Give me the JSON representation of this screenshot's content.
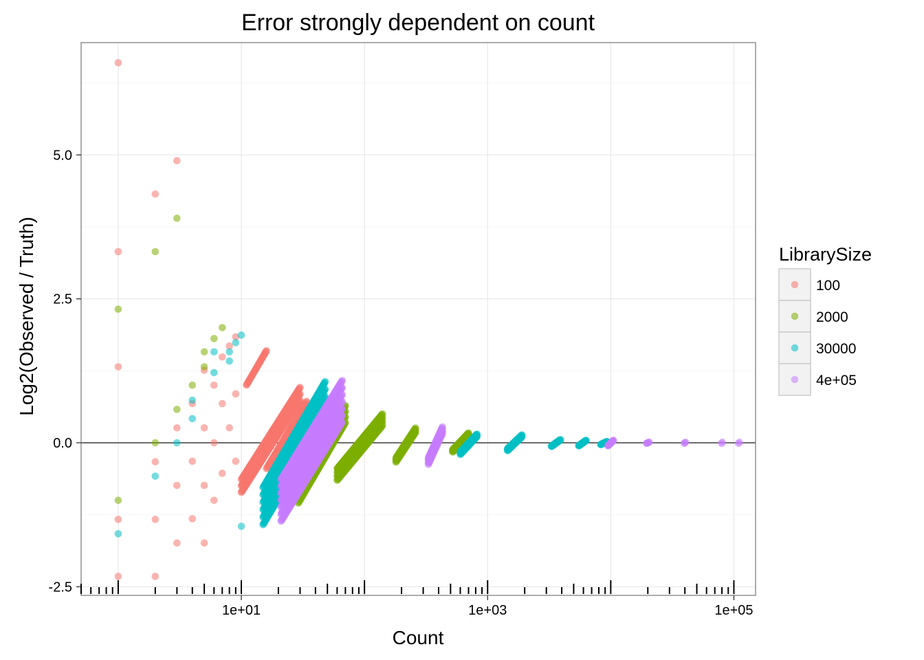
{
  "chart_data": {
    "type": "scatter",
    "title": "Error strongly dependent on count",
    "xlabel": "Count",
    "ylabel": "Log2(Observed / Truth)",
    "x_scale": "log10",
    "xlim": [
      0.5,
      150000
    ],
    "ylim": [
      -2.65,
      6.95
    ],
    "x_tick_labels": [
      "1e+01",
      "1e+03",
      "1e+05"
    ],
    "x_tick_values": [
      10,
      1000,
      100000
    ],
    "y_tick_labels": [
      "-2.5",
      "0.0",
      "2.5",
      "5.0"
    ],
    "y_tick_values": [
      -2.5,
      0.0,
      2.5,
      5.0
    ],
    "reference_line_y": 0,
    "grid": true,
    "legend": {
      "title": "LibrarySize",
      "placement": "right",
      "entries": [
        "100",
        "2000",
        "30000",
        "4e+05"
      ]
    },
    "colors": {
      "100": "#F8766D",
      "2000": "#7CAE00",
      "30000": "#00BFC4",
      "4e+05": "#C77CFF"
    },
    "series": [
      {
        "name": "100",
        "color": "#F8766D",
        "discrete_points": [
          [
            1,
            6.6
          ],
          [
            1,
            3.32
          ],
          [
            1,
            1.32
          ],
          [
            1,
            -1.33
          ],
          [
            1,
            -2.32
          ],
          [
            2,
            4.32
          ],
          [
            2,
            -0.33
          ],
          [
            2,
            -1.33
          ],
          [
            2,
            -2.32
          ],
          [
            3,
            4.9
          ],
          [
            3,
            0.26
          ],
          [
            3,
            -0.74
          ],
          [
            3,
            -1.74
          ],
          [
            4,
            0.68
          ],
          [
            4,
            -0.32
          ],
          [
            4,
            -1.32
          ],
          [
            5,
            1.26
          ],
          [
            5,
            0.26
          ],
          [
            5,
            -0.74
          ],
          [
            5,
            -1.74
          ],
          [
            6,
            1.0
          ],
          [
            6,
            0.0
          ],
          [
            6,
            -1.0
          ],
          [
            7,
            1.49
          ],
          [
            7,
            0.68
          ],
          [
            7,
            -0.53
          ],
          [
            8,
            1.68
          ],
          [
            8,
            0.26
          ],
          [
            9,
            1.84
          ],
          [
            9,
            0.85
          ],
          [
            9,
            -0.32
          ]
        ],
        "bands": [
          {
            "x_start": 10,
            "x_end": 30,
            "y_start": -0.75,
            "y_end": 0.85,
            "lines": 3
          },
          {
            "x_start": 11,
            "x_end": 16,
            "y_start": 1.0,
            "y_end": 1.6,
            "lines": 1
          },
          {
            "x_start": 16,
            "x_end": 34,
            "y_start": -0.45,
            "y_end": 0.72,
            "lines": 1
          }
        ]
      },
      {
        "name": "2000",
        "color": "#7CAE00",
        "discrete_points": [
          [
            1,
            2.32
          ],
          [
            1,
            -1.0
          ],
          [
            2,
            3.32
          ],
          [
            2,
            0.0
          ],
          [
            3,
            3.9
          ],
          [
            3,
            0.58
          ],
          [
            4,
            1.0
          ],
          [
            5,
            1.58
          ],
          [
            5,
            1.32
          ],
          [
            6,
            1.81
          ],
          [
            7,
            2.0
          ]
        ],
        "bands": [
          {
            "x_start": 29,
            "x_end": 70,
            "y_start": -0.9,
            "y_end": 0.5,
            "lines": 4
          },
          {
            "x_start": 60,
            "x_end": 140,
            "y_start": -0.55,
            "y_end": 0.4,
            "lines": 4
          },
          {
            "x_start": 180,
            "x_end": 260,
            "y_start": -0.3,
            "y_end": 0.22,
            "lines": 3
          },
          {
            "x_start": 520,
            "x_end": 700,
            "y_start": -0.14,
            "y_end": 0.15,
            "lines": 3
          }
        ]
      },
      {
        "name": "30000",
        "color": "#00BFC4",
        "discrete_points": [
          [
            1,
            -1.58
          ],
          [
            2,
            -0.58
          ],
          [
            3,
            0.0
          ],
          [
            4,
            0.42
          ],
          [
            4,
            0.74
          ],
          [
            6,
            1.22
          ],
          [
            6,
            1.58
          ],
          [
            8,
            1.42
          ],
          [
            8,
            1.58
          ],
          [
            9,
            1.74
          ],
          [
            10,
            1.87
          ],
          [
            10,
            -1.45
          ]
        ],
        "bands": [
          {
            "x_start": 15,
            "x_end": 48,
            "y_start": -1.1,
            "y_end": 0.74,
            "lines": 6
          },
          {
            "x_start": 600,
            "x_end": 820,
            "y_start": -0.18,
            "y_end": 0.13,
            "lines": 3
          },
          {
            "x_start": 1450,
            "x_end": 1900,
            "y_start": -0.12,
            "y_end": 0.12,
            "lines": 3
          },
          {
            "x_start": 3300,
            "x_end": 3900,
            "y_start": -0.06,
            "y_end": 0.05,
            "lines": 2
          },
          {
            "x_start": 5500,
            "x_end": 6300,
            "y_start": -0.05,
            "y_end": 0.04,
            "lines": 2
          },
          {
            "x_start": 8300,
            "x_end": 9300,
            "y_start": -0.03,
            "y_end": 0.02,
            "lines": 2
          }
        ]
      },
      {
        "name": "4e+05",
        "color": "#C77CFF",
        "discrete_points": [],
        "bands": [
          {
            "x_start": 21,
            "x_end": 66,
            "y_start": -1.0,
            "y_end": 0.72,
            "lines": 7
          },
          {
            "x_start": 330,
            "x_end": 430,
            "y_start": -0.32,
            "y_end": 0.22,
            "lines": 4
          },
          {
            "x_start": 9500,
            "x_end": 10500,
            "y_start": -0.05,
            "y_end": 0.04,
            "lines": 2
          },
          {
            "x_start": 19500,
            "x_end": 20500,
            "y_start": -0.01,
            "y_end": 0.01,
            "lines": 1
          },
          {
            "x_start": 39500,
            "x_end": 40500,
            "y_start": -0.01,
            "y_end": 0.01,
            "lines": 1
          },
          {
            "x_start": 79500,
            "x_end": 80500,
            "y_start": -0.01,
            "y_end": 0.01,
            "lines": 1
          },
          {
            "x_start": 109000,
            "x_end": 111000,
            "y_start": -0.01,
            "y_end": 0.01,
            "lines": 1
          }
        ]
      }
    ]
  }
}
